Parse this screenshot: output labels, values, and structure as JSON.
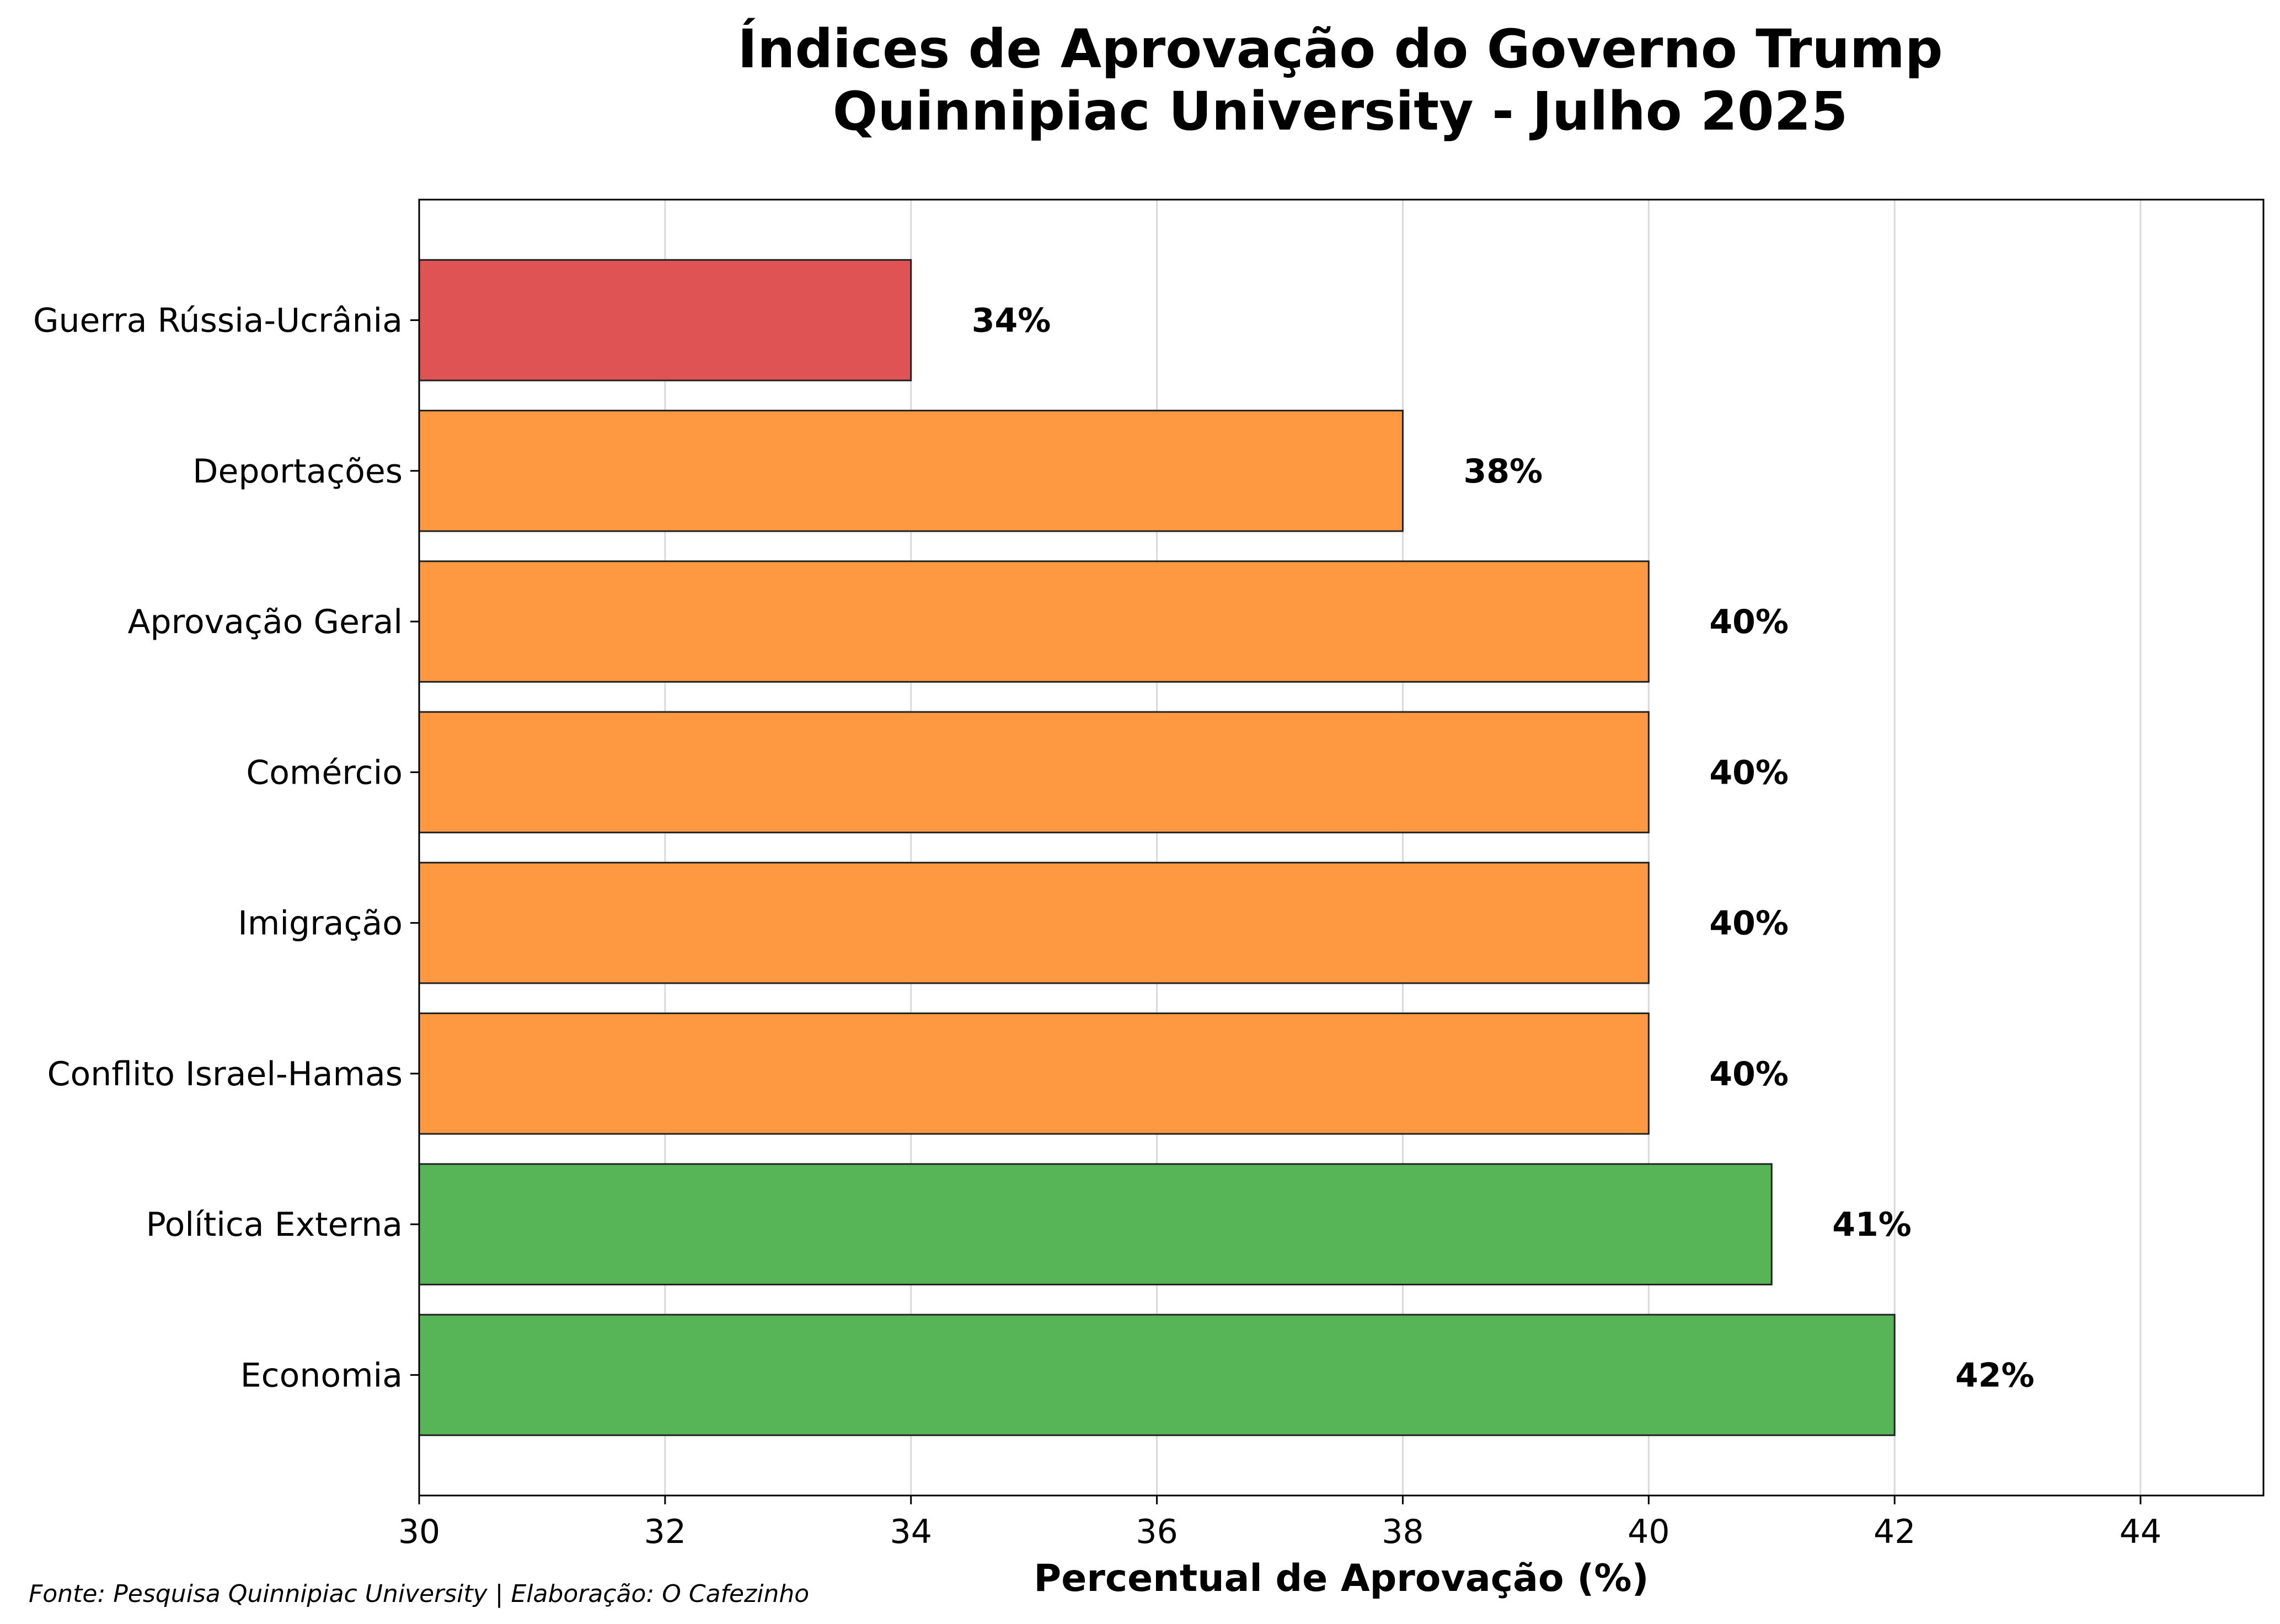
{
  "chart_data": {
    "type": "bar",
    "orientation": "horizontal",
    "title": "Índices de Aprovação do Governo Trump",
    "subtitle": "Quinnipiac University - Julho 2025",
    "xlabel": "Percentual de Aprovação (%)",
    "ylabel": "",
    "xlim": [
      30,
      45
    ],
    "xticks": [
      30,
      32,
      34,
      36,
      38,
      40,
      42,
      44
    ],
    "grid": "vertical",
    "legend": "none",
    "categories": [
      "Guerra Rússia-Ucrânia",
      "Deportações",
      "Aprovação Geral",
      "Comércio",
      "Imigração",
      "Conflito Israel-Hamas",
      "Política Externa",
      "Economia"
    ],
    "values": [
      34,
      38,
      40,
      40,
      40,
      40,
      41,
      42
    ],
    "value_labels": [
      "34%",
      "38%",
      "40%",
      "40%",
      "40%",
      "40%",
      "41%",
      "42%"
    ],
    "colors": [
      "#e05355",
      "#fe9841",
      "#fe9841",
      "#fe9841",
      "#fe9841",
      "#fe9841",
      "#57b557",
      "#57b557"
    ],
    "source_note": "Fonte: Pesquisa Quinnipiac University | Elaboração: O Cafezinho"
  }
}
